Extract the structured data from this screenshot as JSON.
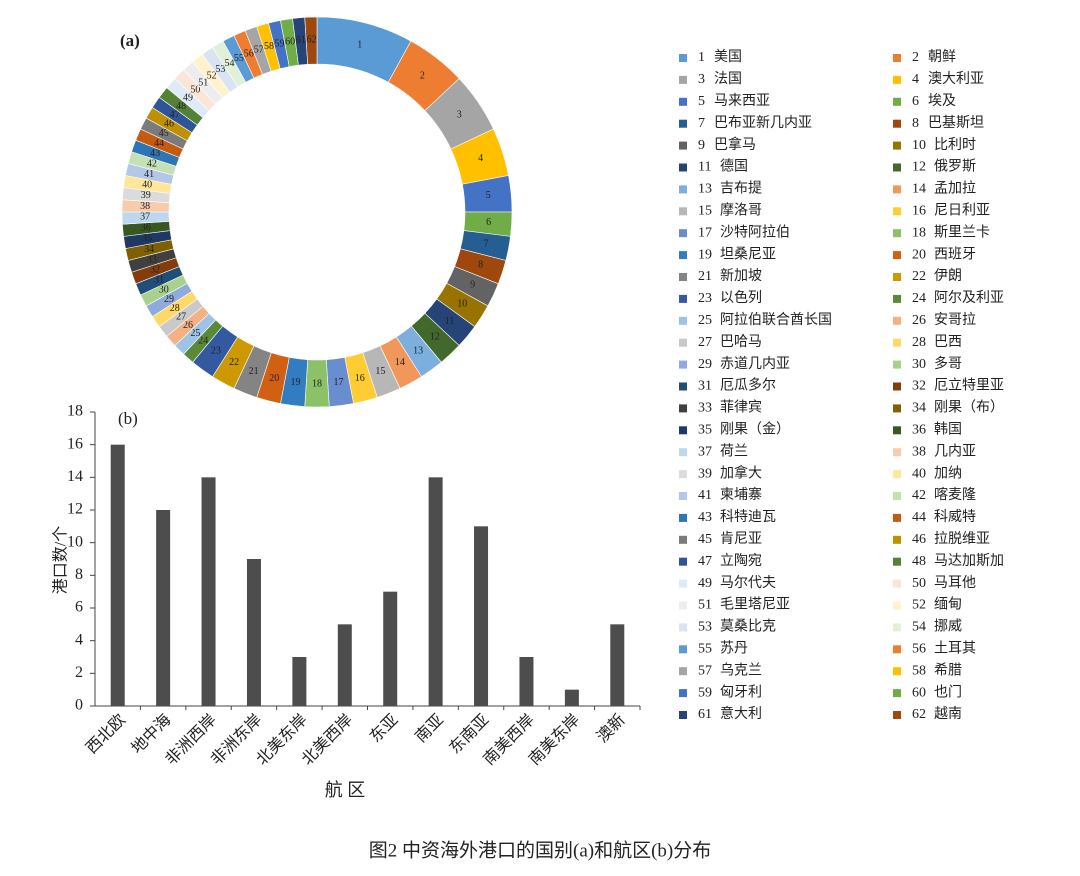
{
  "figure_caption": "图2  中资海外港口的国别(a)和航区(b)分布",
  "chart_data": [
    {
      "type": "donut",
      "panel_label": "(a)",
      "ids": [
        1,
        2,
        3,
        4,
        5,
        6,
        7,
        8,
        9,
        10,
        11,
        12,
        13,
        14,
        15,
        16,
        17,
        18,
        19,
        20,
        21,
        22,
        23,
        24,
        25,
        26,
        27,
        28,
        29,
        30,
        31,
        32,
        33,
        34,
        35,
        36,
        37,
        38,
        39,
        40,
        41,
        42,
        43,
        44,
        45,
        46,
        47,
        48,
        49,
        50,
        51,
        52,
        53,
        54,
        55,
        56,
        57,
        58,
        59,
        60,
        61,
        62
      ],
      "categories": [
        "美国",
        "朝鲜",
        "法国",
        "澳大利亚",
        "马来西亚",
        "埃及",
        "巴布亚新几内亚",
        "巴基斯坦",
        "巴拿马",
        "比利时",
        "德国",
        "俄罗斯",
        "吉布提",
        "孟加拉",
        "摩洛哥",
        "尼日利亚",
        "沙特阿拉伯",
        "斯里兰卡",
        "坦桑尼亚",
        "西班牙",
        "新加坡",
        "伊朗",
        "以色列",
        "阿尔及利亚",
        "阿拉伯联合酋长国",
        "安哥拉",
        "巴哈马",
        "巴西",
        "赤道几内亚",
        "多哥",
        "厄瓜多尔",
        "厄立特里亚",
        "菲律宾",
        "刚果（布）",
        "刚果（金）",
        "韩国",
        "荷兰",
        "几内亚",
        "加拿大",
        "加纳",
        "柬埔寨",
        "喀麦隆",
        "科特迪瓦",
        "科威特",
        "肯尼亚",
        "拉脱维亚",
        "立陶宛",
        "马达加斯加",
        "马尔代夫",
        "马耳他",
        "毛里塔尼亚",
        "缅甸",
        "莫桑比克",
        "挪威",
        "苏丹",
        "土耳其",
        "乌克兰",
        "希腊",
        "匈牙利",
        "也门",
        "意大利",
        "越南"
      ],
      "values": [
        8,
        5,
        5,
        4,
        3,
        2,
        2,
        2,
        2,
        2,
        2,
        2,
        2,
        2,
        2,
        2,
        2,
        2,
        2,
        2,
        2,
        2,
        2,
        1,
        1,
        1,
        1,
        1,
        1,
        1,
        1,
        1,
        1,
        1,
        1,
        1,
        1,
        1,
        1,
        1,
        1,
        1,
        1,
        1,
        1,
        1,
        1,
        1,
        1,
        1,
        1,
        1,
        1,
        1,
        1,
        1,
        1,
        1,
        1,
        1,
        1,
        1
      ],
      "colors": [
        "#5b9bd5",
        "#ed7d31",
        "#a5a5a5",
        "#ffc000",
        "#4472c4",
        "#70ad47",
        "#255e91",
        "#9e480e",
        "#636363",
        "#997300",
        "#264478",
        "#43682b",
        "#7cafdd",
        "#f1975a",
        "#b7b7b7",
        "#ffcd33",
        "#698ed0",
        "#8cc168",
        "#327dc2",
        "#d26012",
        "#848484",
        "#cc9a00",
        "#335aa1",
        "#5a8a39",
        "#9dc3e6",
        "#f4b183",
        "#c9c9c9",
        "#ffd966",
        "#8faadc",
        "#a9d18e",
        "#1f4e79",
        "#843c0c",
        "#404040",
        "#7f6000",
        "#203864",
        "#385723",
        "#bdd7ee",
        "#f8cbad",
        "#dbdbdb",
        "#ffe699",
        "#b4c7e7",
        "#c5e0b4",
        "#2e75b6",
        "#c55a11",
        "#7b7b7b",
        "#bf9000",
        "#2f5597",
        "#538135",
        "#deebf7",
        "#fbe5d6",
        "#ededed",
        "#fff2cc",
        "#dae3f3",
        "#e2f0d9",
        "#5b9bd5",
        "#ed7d31",
        "#a5a5a5",
        "#ffc000",
        "#4472c4",
        "#70ad47",
        "#264478",
        "#9e480e"
      ]
    },
    {
      "type": "bar",
      "panel_label": "(b)",
      "categories": [
        "西北欧",
        "地中海",
        "非洲西岸",
        "非洲东岸",
        "北美东岸",
        "北美西岸",
        "东亚",
        "南亚",
        "东南亚",
        "南美西岸",
        "南美东岸",
        "澳新"
      ],
      "values": [
        16,
        12,
        14,
        9,
        3,
        5,
        7,
        14,
        11,
        3,
        1,
        5
      ],
      "color": "#4d4d4d",
      "ylim": [
        0,
        18
      ],
      "yticks": [
        0,
        2,
        4,
        6,
        8,
        10,
        12,
        14,
        16,
        18
      ],
      "y_label": "港口数/个",
      "x_label": "航 区"
    }
  ]
}
